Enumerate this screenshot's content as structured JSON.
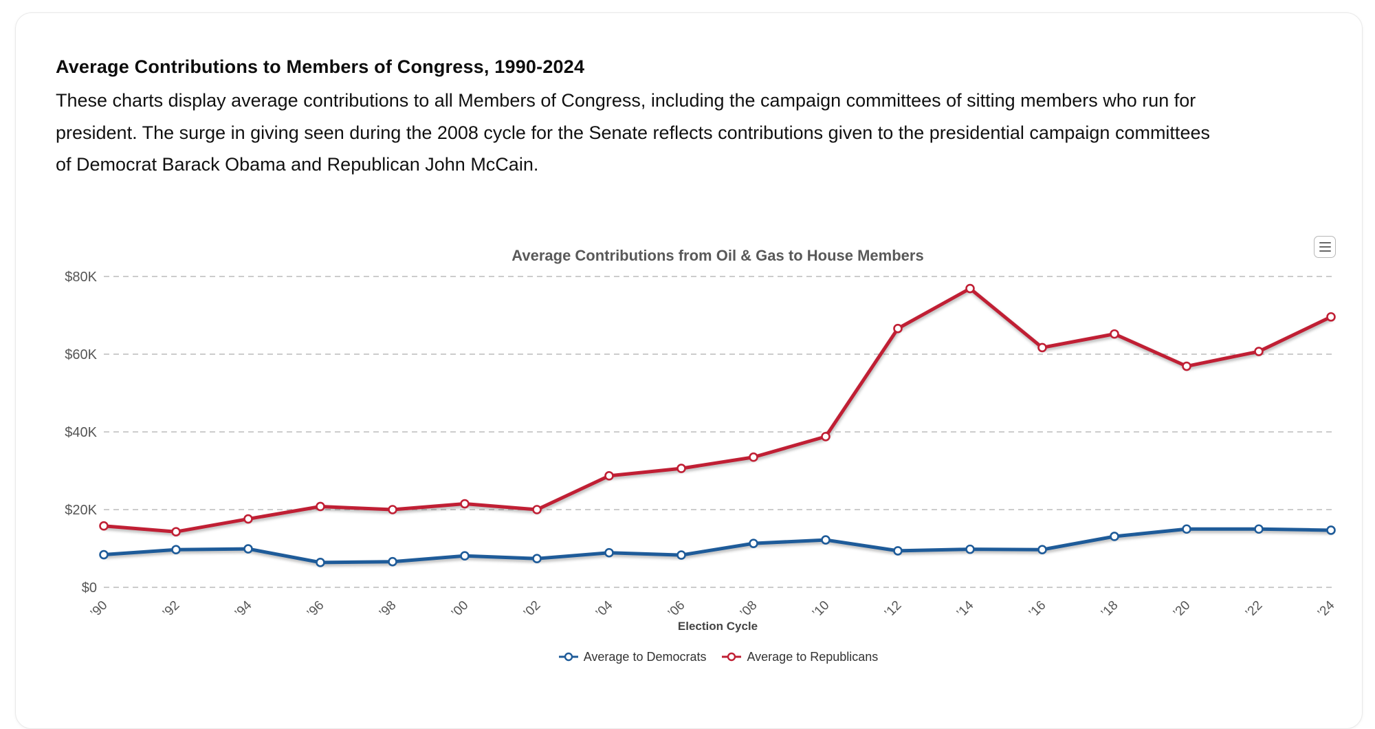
{
  "page": {
    "title": "Average Contributions to Members of Congress, 1990-2024",
    "desc_lines": [
      "These charts display average contributions to all Members of Congress, including the campaign committees of sitting members who run for",
      "president. The surge in giving seen during the 2008 cycle for the Senate reflects contributions given to the presidential campaign committees",
      "of Democrat Barack Obama and Republican John McCain."
    ]
  },
  "icons": {
    "context_menu": "hamburger-menu-icon"
  },
  "colors": {
    "democrat_blue": "#1e5b99",
    "republican_red": "#c01f34",
    "gridline": "#cccccc",
    "tick_label": "#555555",
    "chart_title": "#595959",
    "axis_title": "#444444",
    "legend_text": "#333333"
  },
  "chart_data": {
    "type": "line",
    "title": "Average Contributions from Oil & Gas to House Members",
    "xlabel": "Election Cycle",
    "ylabel": "",
    "unit": "USD thousands",
    "ylim": [
      0,
      80
    ],
    "grid": "dashed-horizontal",
    "legend_position": "bottom-center",
    "y_ticks": [
      {
        "value": 0,
        "label": "$0"
      },
      {
        "value": 20,
        "label": "$20K"
      },
      {
        "value": 40,
        "label": "$40K"
      },
      {
        "value": 60,
        "label": "$60K"
      },
      {
        "value": 80,
        "label": "$80K"
      }
    ],
    "categories": [
      "’90",
      "’92",
      "’94",
      "’96",
      "’98",
      "’00",
      "’02",
      "’04",
      "’06",
      "’08",
      "’10",
      "’12",
      "’14",
      "’16",
      "’18",
      "’20",
      "’22",
      "’24"
    ],
    "series": [
      {
        "name": "Average to Democrats",
        "color": "#1e5b99",
        "values": [
          8.4,
          9.7,
          9.9,
          6.4,
          6.6,
          8.1,
          7.4,
          8.9,
          8.3,
          11.3,
          12.2,
          9.4,
          9.8,
          9.7,
          13.1,
          15.0,
          15.0,
          14.7
        ]
      },
      {
        "name": "Average to Republicans",
        "color": "#c01f34",
        "values": [
          15.8,
          14.3,
          17.6,
          20.8,
          20.0,
          21.5,
          20.0,
          28.7,
          30.6,
          33.5,
          38.8,
          66.6,
          76.9,
          61.7,
          65.2,
          56.9,
          60.7,
          69.6
        ]
      }
    ]
  }
}
